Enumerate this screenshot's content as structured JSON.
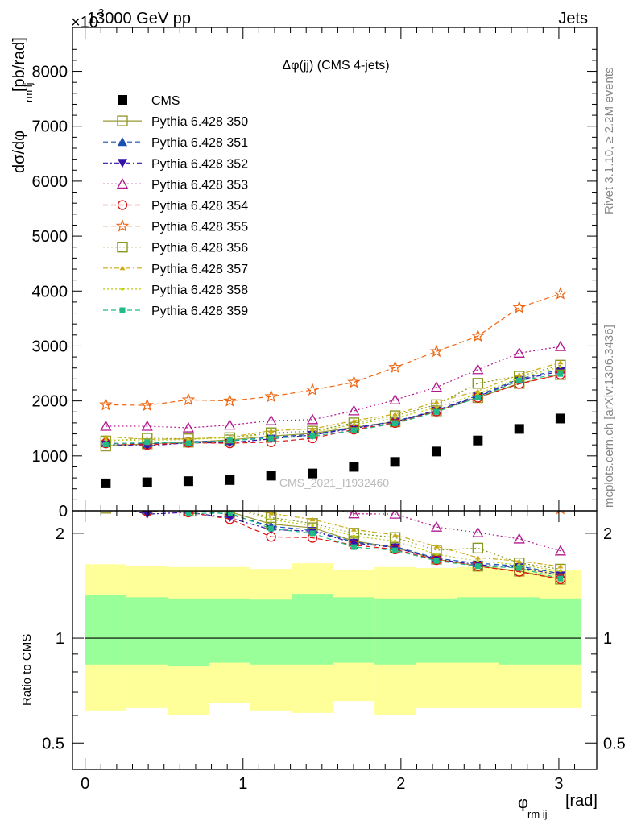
{
  "header": {
    "left": "13000 GeV pp",
    "right": "Jets",
    "exponent": "×10",
    "exponent_power": "3"
  },
  "side_labels": {
    "rivet": "Rivet 3.1.10, ≥ 2.2M events",
    "mcplots": "mcplots.cern.ch [arXiv:1306.3436]"
  },
  "watermark": "CMS_2021_I1932460",
  "chart_data": {
    "type": "line",
    "title": "Δφ(jj) (CMS 4-jets)",
    "xlabel_main": "φ",
    "xlabel_sub": "rm ij",
    "xlabel_unit": "[rad]",
    "ylabel": "dσ/dφ",
    "ylabel_sub": "rm ij",
    "ylabel_unit": "[pb/rad]",
    "ratio_ylabel": "Ratio to CMS",
    "xlim": [
      -0.08,
      3.24
    ],
    "ylim": [
      0,
      8800
    ],
    "ratio_ylim": [
      0.42,
      2.32
    ],
    "x_ticks": [
      0,
      1,
      2,
      3
    ],
    "y_ticks": [
      0,
      1000,
      2000,
      3000,
      4000,
      5000,
      6000,
      7000,
      8000
    ],
    "ratio_ticks": [
      0.5,
      1,
      2
    ],
    "x": [
      0.131,
      0.393,
      0.654,
      0.916,
      1.178,
      1.44,
      1.702,
      1.963,
      2.225,
      2.487,
      2.749,
      3.01
    ],
    "bin_edges": [
      0,
      0.262,
      0.524,
      0.785,
      1.047,
      1.309,
      1.571,
      1.833,
      2.094,
      2.356,
      2.618,
      2.88,
      3.142
    ],
    "band_inner": [
      [
        0.84,
        1.33
      ],
      [
        0.84,
        1.31
      ],
      [
        0.83,
        1.3
      ],
      [
        0.85,
        1.3
      ],
      [
        0.84,
        1.29
      ],
      [
        0.84,
        1.34
      ],
      [
        0.85,
        1.31
      ],
      [
        0.84,
        1.3
      ],
      [
        0.85,
        1.3
      ],
      [
        0.85,
        1.31
      ],
      [
        0.84,
        1.31
      ],
      [
        0.84,
        1.3
      ]
    ],
    "band_outer": [
      [
        0.62,
        1.63
      ],
      [
        0.63,
        1.61
      ],
      [
        0.6,
        1.6
      ],
      [
        0.65,
        1.6
      ],
      [
        0.62,
        1.58
      ],
      [
        0.61,
        1.64
      ],
      [
        0.66,
        1.57
      ],
      [
        0.6,
        1.6
      ],
      [
        0.63,
        1.59
      ],
      [
        0.63,
        1.6
      ],
      [
        0.63,
        1.58
      ],
      [
        0.63,
        1.57
      ]
    ],
    "cms": [
      500,
      520,
      540,
      560,
      640,
      680,
      800,
      890,
      1080,
      1280,
      1490,
      1680
    ],
    "series": [
      {
        "name": "CMS",
        "color": "#000000",
        "marker": "square-filled",
        "dash": "none",
        "values": [
          500,
          520,
          540,
          560,
          640,
          680,
          800,
          890,
          1080,
          1280,
          1490,
          1680
        ]
      },
      {
        "name": "Pythia 6.428 350",
        "color": "#999933",
        "marker": "square-open",
        "dash": "solid",
        "values": [
          1180,
          1220,
          1250,
          1290,
          1360,
          1410,
          1520,
          1620,
          1820,
          2060,
          2320,
          2480
        ]
      },
      {
        "name": "Pythia 6.428 351",
        "color": "#1a4fb3",
        "marker": "triangle-up-filled",
        "dash": "dash",
        "values": [
          1230,
          1220,
          1260,
          1270,
          1340,
          1390,
          1510,
          1630,
          1830,
          2100,
          2400,
          2570
        ]
      },
      {
        "name": "Pythia 6.428 352",
        "color": "#3311aa",
        "marker": "triangle-down-filled",
        "dash": "dashdot",
        "values": [
          1210,
          1180,
          1240,
          1240,
          1310,
          1380,
          1500,
          1620,
          1820,
          2080,
          2380,
          2540
        ]
      },
      {
        "name": "Pythia 6.428 353",
        "color": "#b3178f",
        "marker": "triangle-up-open",
        "dash": "dot",
        "values": [
          1540,
          1540,
          1510,
          1560,
          1640,
          1660,
          1820,
          2020,
          2250,
          2570,
          2870,
          2990
        ]
      },
      {
        "name": "Pythia 6.428 354",
        "color": "#dd1111",
        "marker": "circle-open",
        "dash": "dash",
        "values": [
          1230,
          1200,
          1240,
          1230,
          1250,
          1320,
          1480,
          1600,
          1810,
          2060,
          2310,
          2480
        ]
      },
      {
        "name": "Pythia 6.428 355",
        "color": "#ee6611",
        "marker": "star-open",
        "dash": "dash",
        "values": [
          1930,
          1920,
          2020,
          2000,
          2080,
          2200,
          2340,
          2610,
          2900,
          3180,
          3700,
          3950
        ]
      },
      {
        "name": "Pythia 6.428 356",
        "color": "#889922",
        "marker": "square-open",
        "dash": "dot",
        "values": [
          1270,
          1320,
          1310,
          1330,
          1420,
          1450,
          1600,
          1730,
          1930,
          2320,
          2450,
          2650
        ]
      },
      {
        "name": "Pythia 6.428 357",
        "color": "#ccaa11",
        "marker": "tri-small",
        "dash": "dashdot",
        "values": [
          1350,
          1300,
          1310,
          1340,
          1460,
          1490,
          1640,
          1760,
          1980,
          2180,
          2480,
          2700
        ]
      },
      {
        "name": "Pythia 6.428 358",
        "color": "#bbcc11",
        "marker": "dot-small",
        "dash": "dot",
        "values": [
          1290,
          1280,
          1300,
          1330,
          1400,
          1430,
          1570,
          1690,
          1880,
          2130,
          2420,
          2620
        ]
      },
      {
        "name": "Pythia 6.428 359",
        "color": "#22bb88",
        "marker": "square-small-filled",
        "dash": "dash",
        "values": [
          1210,
          1250,
          1230,
          1280,
          1320,
          1360,
          1460,
          1590,
          1800,
          2060,
          2370,
          2490
        ]
      }
    ]
  }
}
